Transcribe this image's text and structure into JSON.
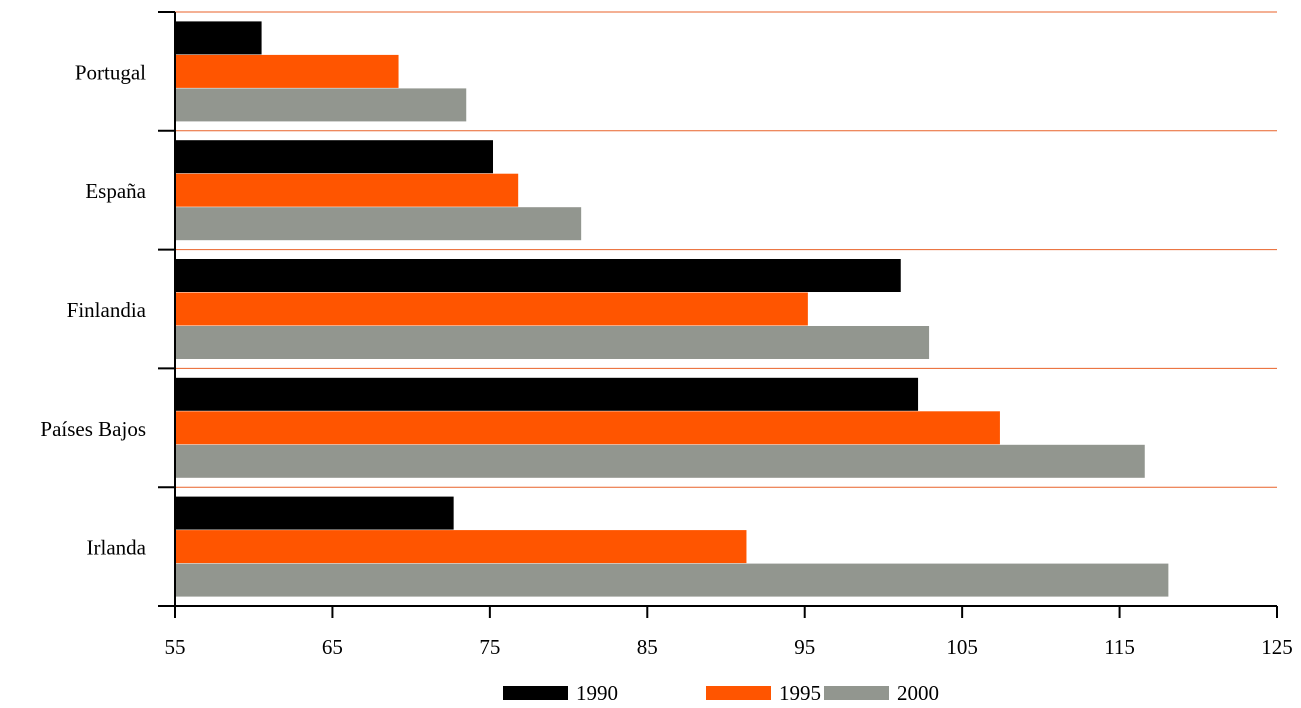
{
  "chart_data": {
    "type": "bar",
    "orientation": "horizontal",
    "title": "",
    "xlabel": "",
    "ylabel": "",
    "categories": [
      "Portugal",
      "España",
      "Finlandia",
      "Países Bajos",
      "Irlanda"
    ],
    "series": [
      {
        "name": "1990",
        "color": "#000000",
        "values": [
          60.5,
          75.2,
          101.1,
          102.2,
          72.7
        ]
      },
      {
        "name": "1995",
        "color": "#ff5500",
        "values": [
          69.2,
          76.8,
          95.2,
          107.4,
          91.3
        ]
      },
      {
        "name": "2000",
        "color": "#92968f",
        "values": [
          73.5,
          80.8,
          102.9,
          116.6,
          118.1
        ]
      }
    ],
    "xlim": [
      55,
      125
    ],
    "xticks": [
      "55",
      "65",
      "75",
      "85",
      "95",
      "105",
      "115",
      "125"
    ],
    "gridlines": {
      "horizontal_separators": true,
      "color": "#e8622a"
    },
    "legend": {
      "position": "bottom-center"
    }
  }
}
